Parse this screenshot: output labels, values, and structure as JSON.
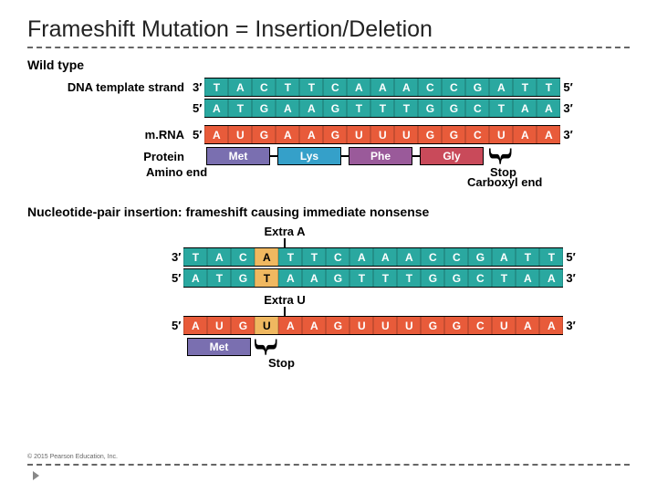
{
  "title": "Frameshift Mutation = Insertion/Deletion",
  "colors": {
    "dna": "#2aa8a0",
    "rna": "#e85b3a",
    "insert": "#f0b860",
    "aa_met": "#7a6fb0",
    "aa_lys": "#35a0c9",
    "aa_phe": "#9a5a9a",
    "aa_gly": "#c94a5a",
    "text": "#000000"
  },
  "wildtype": {
    "heading": "Wild type",
    "dna_label": "DNA template strand",
    "mrna_label": "m.RNA",
    "protein_label": "Protein",
    "amino_end": "Amino end",
    "carboxyl_end": "Carboxyl end",
    "stop": "Stop",
    "end3": "3′",
    "end5": "5′",
    "dna_top": [
      "T",
      "A",
      "C",
      "T",
      "T",
      "C",
      "A",
      "A",
      "A",
      "C",
      "C",
      "G",
      "A",
      "T",
      "T"
    ],
    "dna_bot": [
      "A",
      "T",
      "G",
      "A",
      "A",
      "G",
      "T",
      "T",
      "T",
      "G",
      "G",
      "C",
      "T",
      "A",
      "A"
    ],
    "mrna": [
      "A",
      "U",
      "G",
      "A",
      "A",
      "G",
      "U",
      "U",
      "U",
      "G",
      "G",
      "C",
      "U",
      "A",
      "A"
    ],
    "aas": [
      {
        "name": "Met",
        "color": "#7a6fb0"
      },
      {
        "name": "Lys",
        "color": "#35a0c9"
      },
      {
        "name": "Phe",
        "color": "#9a5a9a"
      },
      {
        "name": "Gly",
        "color": "#c94a5a"
      }
    ]
  },
  "insertion": {
    "heading": "Nucleotide-pair insertion: frameshift causing immediate nonsense",
    "extraA": "Extra A",
    "extraU": "Extra U",
    "stop": "Stop",
    "end3": "3′",
    "end5": "5′",
    "dna_top": [
      {
        "b": "T"
      },
      {
        "b": "A"
      },
      {
        "b": "C"
      },
      {
        "b": "A",
        "ins": true
      },
      {
        "b": "T"
      },
      {
        "b": "T"
      },
      {
        "b": "C"
      },
      {
        "b": "A"
      },
      {
        "b": "A"
      },
      {
        "b": "A"
      },
      {
        "b": "C"
      },
      {
        "b": "C"
      },
      {
        "b": "G"
      },
      {
        "b": "A"
      },
      {
        "b": "T"
      },
      {
        "b": "T"
      }
    ],
    "dna_bot": [
      {
        "b": "A"
      },
      {
        "b": "T"
      },
      {
        "b": "G"
      },
      {
        "b": "T",
        "ins": true
      },
      {
        "b": "A"
      },
      {
        "b": "A"
      },
      {
        "b": "G"
      },
      {
        "b": "T"
      },
      {
        "b": "T"
      },
      {
        "b": "T"
      },
      {
        "b": "G"
      },
      {
        "b": "G"
      },
      {
        "b": "C"
      },
      {
        "b": "T"
      },
      {
        "b": "A"
      },
      {
        "b": "A"
      }
    ],
    "mrna": [
      {
        "b": "A"
      },
      {
        "b": "U"
      },
      {
        "b": "G"
      },
      {
        "b": "U",
        "ins": true
      },
      {
        "b": "A"
      },
      {
        "b": "A"
      },
      {
        "b": "G"
      },
      {
        "b": "U"
      },
      {
        "b": "U"
      },
      {
        "b": "U"
      },
      {
        "b": "G"
      },
      {
        "b": "G"
      },
      {
        "b": "C"
      },
      {
        "b": "U"
      },
      {
        "b": "A"
      },
      {
        "b": "A"
      }
    ],
    "aas": [
      {
        "name": "Met",
        "color": "#7a6fb0"
      }
    ]
  },
  "copyright": "© 2015 Pearson Education, Inc."
}
